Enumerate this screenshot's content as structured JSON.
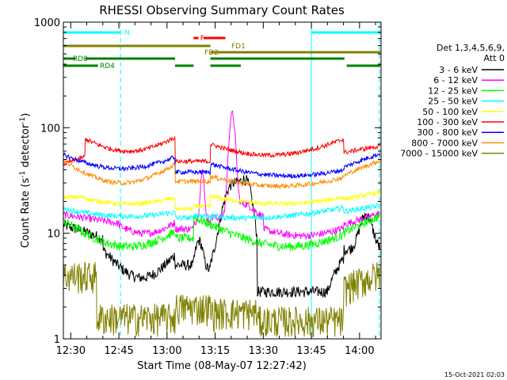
{
  "chart_data": {
    "type": "line",
    "title": "RHESSI Observing Summary Count Rates",
    "xlabel": "Start Time (08-May-07 12:27:42)",
    "ylabel_main": "Count Rate (s",
    "ylabel_sup1": "-1",
    "ylabel_mid": " detector",
    "ylabel_sup2": "-1",
    "ylabel_end": ")",
    "ylim": [
      1,
      1000
    ],
    "yscale": "log",
    "xlim_minutes": [
      747.7,
      846.7
    ],
    "x_ticks": [
      {
        "label": "12:30",
        "m": 750
      },
      {
        "label": "12:45",
        "m": 765
      },
      {
        "label": "13:00",
        "m": 780
      },
      {
        "label": "13:15",
        "m": 795
      },
      {
        "label": "13:30",
        "m": 810
      },
      {
        "label": "13:45",
        "m": 825
      },
      {
        "label": "14:00",
        "m": 840
      }
    ],
    "y_ticks": [
      {
        "label": "1",
        "v": 1
      },
      {
        "label": "10",
        "v": 10
      },
      {
        "label": "100",
        "v": 100
      },
      {
        "label": "1000",
        "v": 1000
      }
    ],
    "legend_header": [
      "Det 1,3,4,5,6,9,",
      "Att 0"
    ],
    "series": [
      {
        "name": "3 - 6 keV",
        "color": "#000000"
      },
      {
        "name": "6 - 12 keV",
        "color": "#ff00ff"
      },
      {
        "name": "12 - 25 keV",
        "color": "#00ff00"
      },
      {
        "name": "25 - 50 keV",
        "color": "#00ffff"
      },
      {
        "name": "50 - 100 keV",
        "color": "#ffff00"
      },
      {
        "name": "100 - 300 keV",
        "color": "#ff0000"
      },
      {
        "name": "300 - 800 keV",
        "color": "#0000ff"
      },
      {
        "name": "800 - 7000 keV",
        "color": "#ff8c00"
      },
      {
        "name": "7000 - 15000 keV",
        "color": "#808000"
      }
    ],
    "flag_bars": [
      {
        "label": "N",
        "color": "#00ffff",
        "segments": [
          [
            747.7,
            765.5
          ],
          [
            825,
            846.5
          ]
        ],
        "level": 0
      },
      {
        "label": "F",
        "color": "#ff0000",
        "segments": [
          [
            788.3,
            789.8
          ],
          [
            791.4,
            798.2
          ]
        ],
        "level": 1
      },
      {
        "label": "FD1",
        "color": "#808000",
        "segments": [
          [
            747.7,
            793.5
          ]
        ],
        "level": 2
      },
      {
        "label": "FD2",
        "color": "#808000",
        "segments": [
          [
            793.5,
            846.5
          ]
        ],
        "level": 3
      },
      {
        "label": "RD0",
        "color": "#008000",
        "segments": [
          [
            747.7,
            751.5
          ],
          [
            754.5,
            782.5
          ],
          [
            793.5,
            835.3
          ]
        ],
        "level": 4
      },
      {
        "label": "RD4",
        "color": "#008000",
        "segments": [
          [
            747.7,
            758.5
          ],
          [
            782.5,
            788.3
          ],
          [
            793.5,
            803
          ],
          [
            836,
            846.5
          ]
        ],
        "level": 5
      }
    ],
    "vertical_markers": [
      {
        "m": 747.7,
        "style": "solid"
      },
      {
        "m": 765.5,
        "style": "dashed"
      },
      {
        "m": 825,
        "style": "solid"
      },
      {
        "m": 846.2,
        "style": "dashed"
      }
    ],
    "footer_date": "15-Oct-2021 02:03"
  }
}
